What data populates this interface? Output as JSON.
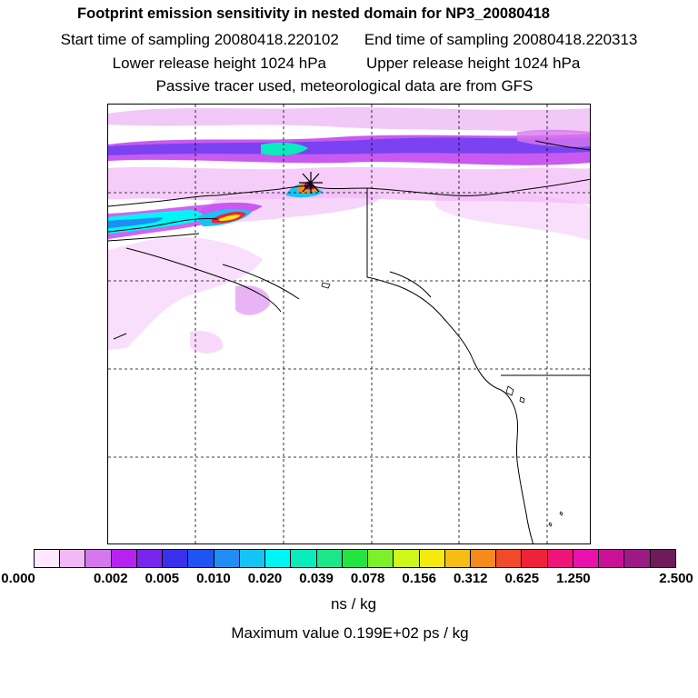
{
  "header": {
    "title": "Footprint emission sensitivity in nested domain for NP3_20080418",
    "start_sampling": "Start time of sampling 20080418.220102",
    "end_sampling": "End time of sampling 20080418.220313",
    "lower_release": "Lower release height 1024 hPa",
    "upper_release": "Upper release height 1024 hPa",
    "tracer_info": "Passive tracer used, meteorological data are from GFS"
  },
  "map": {
    "release_marker": "release-location"
  },
  "colorbar": {
    "colors": [
      "#ffe8ff",
      "#f2b8f7",
      "#d777ef",
      "#b623ee",
      "#7a25ee",
      "#3b2fee",
      "#1e55f2",
      "#1f8df3",
      "#14c4f5",
      "#00f5f5",
      "#08ecbd",
      "#1ce68a",
      "#22e53f",
      "#7df02a",
      "#cff81a",
      "#f5ea0e",
      "#f8bd15",
      "#f68a1c",
      "#f24b2a",
      "#ee2238",
      "#ef147a",
      "#ea10ae",
      "#c91096",
      "#9c1a83",
      "#6f1a5b"
    ],
    "tick_labels": [
      "0.000",
      "0.002",
      "0.005",
      "0.010",
      "0.020",
      "0.039",
      "0.078",
      "0.156",
      "0.312",
      "0.625",
      "1.250",
      "2.500"
    ],
    "units": "ns / kg"
  },
  "footer": {
    "maximum_value": "Maximum value  0.199E+02 ps / kg"
  }
}
